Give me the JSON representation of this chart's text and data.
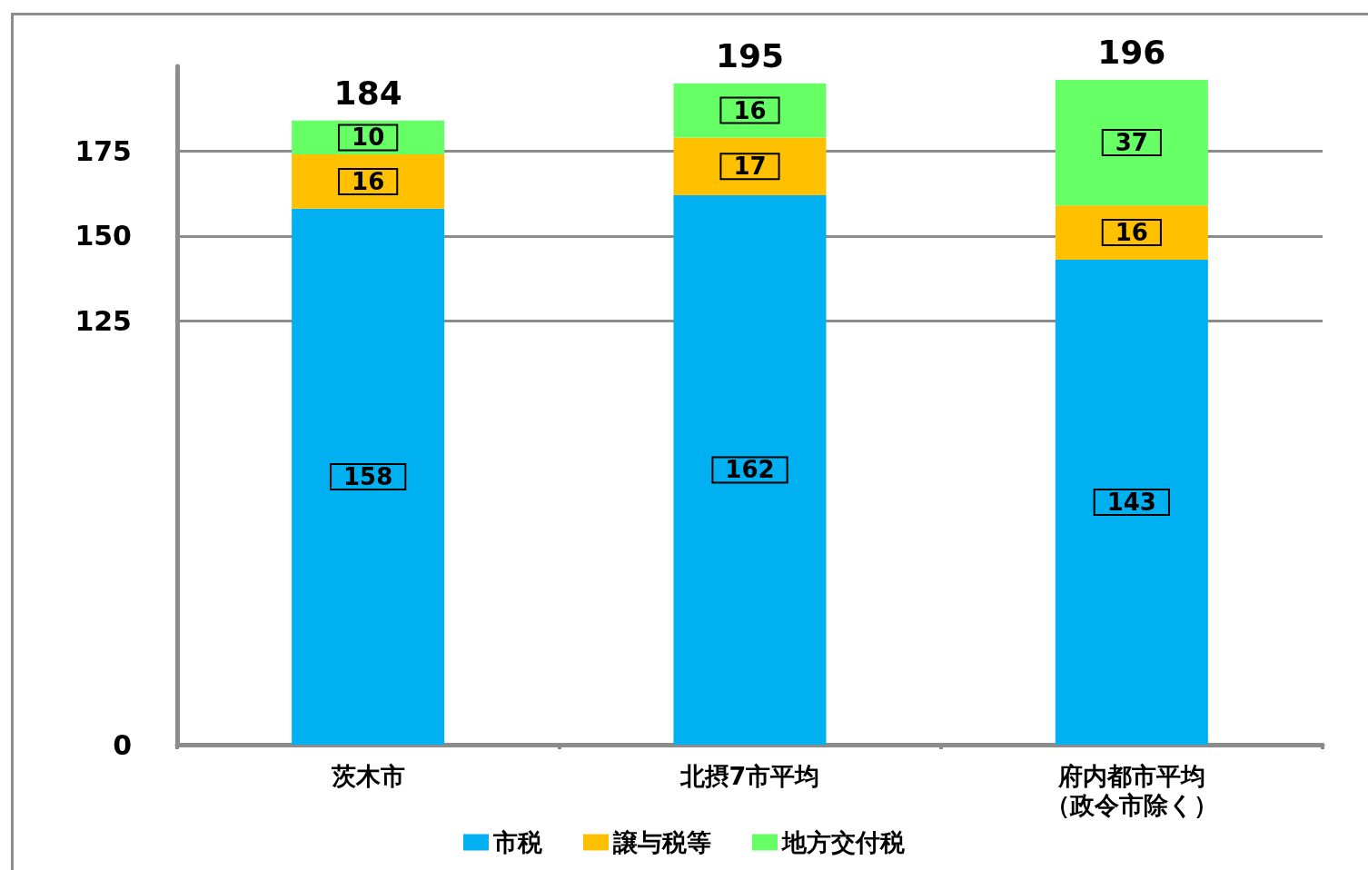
{
  "chart_data": {
    "type": "bar",
    "stacked": true,
    "categories": [
      "茨木市",
      "北摂7市平均",
      "府内都市平均（政令市除く）"
    ],
    "series": [
      {
        "name": "市税",
        "color": "#00b0f0",
        "values": [
          158,
          162,
          143
        ]
      },
      {
        "name": "譲与税等",
        "color": "#ffc000",
        "values": [
          16,
          17,
          16
        ]
      },
      {
        "name": "地方交付税",
        "color": "#66ff66",
        "values": [
          10,
          16,
          37
        ]
      }
    ],
    "ylim": [
      0,
      200
    ],
    "yticks": [
      0,
      125,
      150,
      175
    ],
    "grid": "y",
    "legend": "bottom",
    "data_labels": true,
    "totals": [
      "184",
      "195",
      "196"
    ]
  }
}
